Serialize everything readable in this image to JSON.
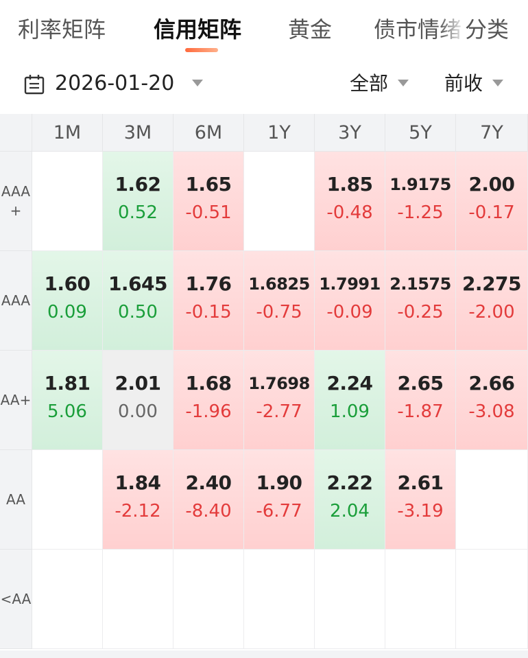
{
  "tabs": [
    {
      "label": "利率矩阵",
      "active": false
    },
    {
      "label": "信用矩阵",
      "active": true
    },
    {
      "label": "黄金",
      "active": false
    },
    {
      "label": "债市情绪",
      "active": false
    },
    {
      "label": "分类",
      "active": false
    }
  ],
  "filters": {
    "date": "2026-01-20",
    "scope": "全部",
    "basis": "前收"
  },
  "matrix": {
    "columns": [
      "1M",
      "3M",
      "6M",
      "1Y",
      "3Y",
      "5Y",
      "7Y"
    ],
    "rows": [
      {
        "label": "AAA\n+",
        "cells": [
          null,
          {
            "yield": "1.62",
            "change": "0.52",
            "dir": "down"
          },
          {
            "yield": "1.65",
            "change": "-0.51",
            "dir": "up"
          },
          null,
          {
            "yield": "1.85",
            "change": "-0.48",
            "dir": "up"
          },
          {
            "yield": "1.9175",
            "change": "-1.25",
            "dir": "up"
          },
          {
            "yield": "2.00",
            "change": "-0.17",
            "dir": "up"
          }
        ]
      },
      {
        "label": "AAA",
        "cells": [
          {
            "yield": "1.60",
            "change": "0.09",
            "dir": "down"
          },
          {
            "yield": "1.645",
            "change": "0.50",
            "dir": "down"
          },
          {
            "yield": "1.76",
            "change": "-0.15",
            "dir": "up"
          },
          {
            "yield": "1.6825",
            "change": "-0.75",
            "dir": "up"
          },
          {
            "yield": "1.7991",
            "change": "-0.09",
            "dir": "up"
          },
          {
            "yield": "2.1575",
            "change": "-0.25",
            "dir": "up"
          },
          {
            "yield": "2.275",
            "change": "-2.00",
            "dir": "up"
          }
        ]
      },
      {
        "label": "AA+",
        "cells": [
          {
            "yield": "1.81",
            "change": "5.06",
            "dir": "down"
          },
          {
            "yield": "2.01",
            "change": "0.00",
            "dir": "flat"
          },
          {
            "yield": "1.68",
            "change": "-1.96",
            "dir": "up"
          },
          {
            "yield": "1.7698",
            "change": "-2.77",
            "dir": "up"
          },
          {
            "yield": "2.24",
            "change": "1.09",
            "dir": "down"
          },
          {
            "yield": "2.65",
            "change": "-1.87",
            "dir": "up"
          },
          {
            "yield": "2.66",
            "change": "-3.08",
            "dir": "up"
          }
        ]
      },
      {
        "label": "AA",
        "cells": [
          null,
          {
            "yield": "1.84",
            "change": "-2.12",
            "dir": "up"
          },
          {
            "yield": "2.40",
            "change": "-8.40",
            "dir": "up"
          },
          {
            "yield": "1.90",
            "change": "-6.77",
            "dir": "up"
          },
          {
            "yield": "2.22",
            "change": "2.04",
            "dir": "down"
          },
          {
            "yield": "2.61",
            "change": "-3.19",
            "dir": "up"
          },
          null
        ]
      },
      {
        "label": "<AA",
        "cells": [
          null,
          null,
          null,
          null,
          null,
          null,
          null
        ]
      }
    ]
  }
}
